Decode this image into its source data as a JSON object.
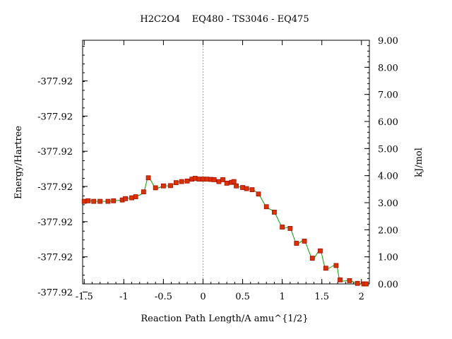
{
  "chart_data": {
    "type": "line",
    "title": "H2C2O4    EQ480 - TS3046 - EQ475",
    "xlabel": "Reaction Path Length/A amu^{1/2}",
    "ylabel_left": "Energy/Hartree",
    "ylabel_right": "kJ/mol",
    "xlim": [
      -1.52,
      2.1
    ],
    "x_ticks": [
      "-1.5",
      "-1",
      "-0.5",
      "0",
      "0.5",
      "1",
      "1.5",
      "2"
    ],
    "x_tick_values": [
      -1.5,
      -1,
      -0.5,
      0,
      0.5,
      1,
      1.5,
      2
    ],
    "y_left_ticks": [
      "-377.92",
      "-377.92",
      "-377.92",
      "-377.92",
      "-377.92",
      "-377.92",
      "-377.92"
    ],
    "y_left_tick_values": [
      7.5,
      6.2,
      4.9,
      3.6,
      2.3,
      1.0,
      -0.3
    ],
    "ylim_right": [
      0,
      9
    ],
    "y_right_ticks": [
      "0.00",
      "1.00",
      "2.00",
      "3.00",
      "4.00",
      "5.00",
      "6.00",
      "7.00",
      "8.00",
      "9.00"
    ],
    "y_right_tick_values": [
      0,
      1,
      2,
      3,
      4,
      5,
      6,
      7,
      8,
      9
    ],
    "ts_marker_x": 0,
    "colors": {
      "line": "#00a000",
      "marker_fill": "#e03000",
      "marker_edge": "#a01000",
      "ts_line": "#888888"
    },
    "series": [
      {
        "x": [
          -1.5,
          -1.45,
          -1.38,
          -1.3,
          -1.2,
          -1.13,
          -1.02,
          -0.98,
          -0.9,
          -0.85,
          -0.75,
          -0.69,
          -0.6,
          -0.5,
          -0.41,
          -0.34,
          -0.27,
          -0.2,
          -0.14,
          -0.1,
          -0.05,
          0,
          0.05,
          0.1,
          0.14,
          0.2,
          0.25,
          0.3,
          0.36,
          0.39,
          0.42,
          0.5,
          0.55,
          0.62,
          0.7,
          0.8,
          0.9,
          1.0,
          1.1,
          1.18,
          1.28,
          1.38,
          1.48,
          1.55,
          1.68,
          1.73,
          1.85,
          1.95,
          2.03,
          2.06
        ],
        "y": [
          3.05,
          3.07,
          3.05,
          3.05,
          3.05,
          3.07,
          3.1,
          3.15,
          3.18,
          3.22,
          3.4,
          3.92,
          3.55,
          3.62,
          3.63,
          3.74,
          3.78,
          3.8,
          3.87,
          3.9,
          3.87,
          3.87,
          3.87,
          3.86,
          3.85,
          3.78,
          3.85,
          3.72,
          3.75,
          3.78,
          3.62,
          3.56,
          3.52,
          3.48,
          3.32,
          2.85,
          2.65,
          2.1,
          2.05,
          1.5,
          1.58,
          0.95,
          1.22,
          0.58,
          0.68,
          0.15,
          0.12,
          0.02,
          0.0,
          0.0
        ]
      }
    ]
  }
}
